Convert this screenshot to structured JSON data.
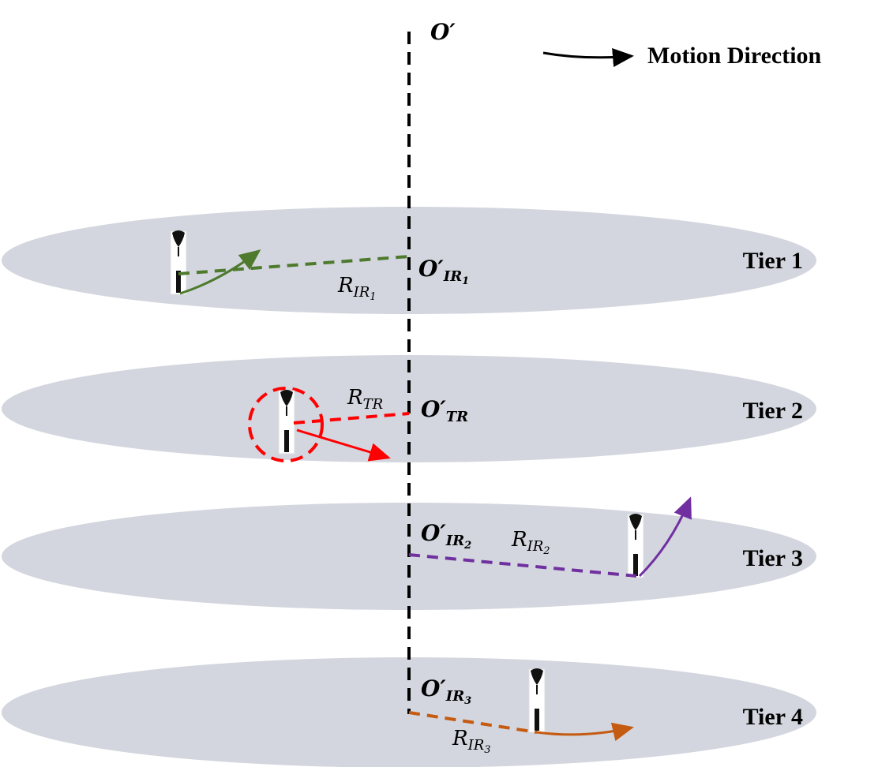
{
  "axis_label": "O′",
  "motion_legend": "Motion Direction",
  "tiers": [
    {
      "label": "Tier 1",
      "center": {
        "main": "O′",
        "sub": "IR",
        "index": "1"
      },
      "radius": {
        "main": "R",
        "sub": "IR",
        "index": "1"
      }
    },
    {
      "label": "Tier 2",
      "center": {
        "main": "O′",
        "sub": "TR"
      },
      "radius": {
        "main": "R",
        "sub": "TR"
      }
    },
    {
      "label": "Tier 3",
      "center": {
        "main": "O′",
        "sub": "IR",
        "index": "2"
      },
      "radius": {
        "main": "R",
        "sub": "IR",
        "index": "2"
      }
    },
    {
      "label": "Tier 4",
      "center": {
        "main": "O′",
        "sub": "IR",
        "index": "3"
      },
      "radius": {
        "main": "R",
        "sub": "IR",
        "index": "3"
      }
    }
  ]
}
